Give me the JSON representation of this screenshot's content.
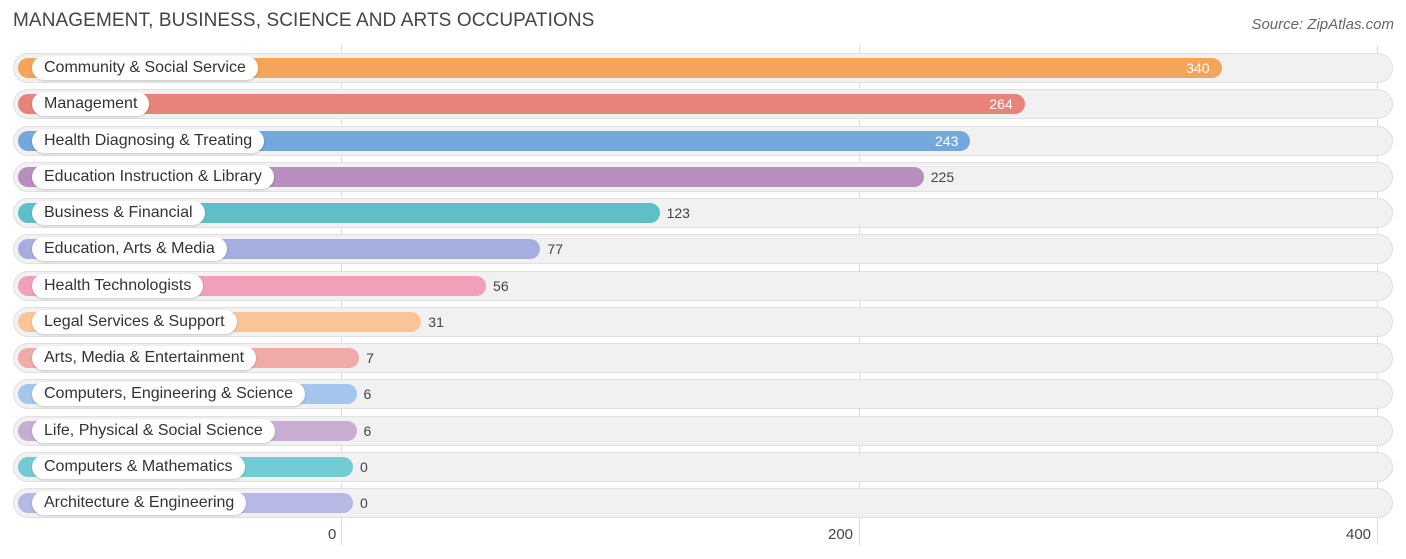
{
  "header": {
    "title": "MANAGEMENT, BUSINESS, SCIENCE AND ARTS OCCUPATIONS",
    "source": "Source: ZipAtlas.com"
  },
  "chart_data": {
    "type": "bar",
    "orientation": "horizontal",
    "title": "MANAGEMENT, BUSINESS, SCIENCE AND ARTS OCCUPATIONS",
    "categories": [
      "Community & Social Service",
      "Management",
      "Health Diagnosing & Treating",
      "Education Instruction & Library",
      "Business & Financial",
      "Education, Arts & Media",
      "Health Technologists",
      "Legal Services & Support",
      "Arts, Media & Entertainment",
      "Computers, Engineering & Science",
      "Life, Physical & Social Science",
      "Computers & Mathematics",
      "Architecture & Engineering"
    ],
    "values": [
      340,
      264,
      243,
      225,
      123,
      77,
      56,
      31,
      7,
      6,
      6,
      0,
      0
    ],
    "colors": [
      "#f5a55a",
      "#e8837c",
      "#74a7dc",
      "#b88ebf",
      "#5fbec8",
      "#a6addf",
      "#f29fba",
      "#f9c498",
      "#f0aaa8",
      "#a5c5ec",
      "#c9aed3",
      "#73cbd3",
      "#b6b9e6"
    ],
    "xlim": [
      0,
      400
    ],
    "xticks": [
      "0",
      "200",
      "400"
    ],
    "grid": true
  }
}
